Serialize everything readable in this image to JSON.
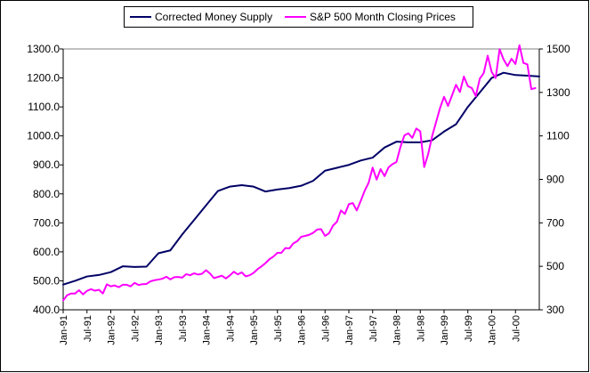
{
  "chart_data": {
    "type": "line",
    "title": "",
    "xlabel": "",
    "ylabel_left": "",
    "ylabel_right": "",
    "legend_position": "top-center",
    "grid": false,
    "x_ticks": [
      "Jan-91",
      "Jul-91",
      "Jan-92",
      "Jul-92",
      "Jan-93",
      "Jul-93",
      "Jan-94",
      "Jul-94",
      "Jan-95",
      "Jul-95",
      "Jan-96",
      "Jul-96",
      "Jan-97",
      "Jul-97",
      "Jan-98",
      "Jul-98",
      "Jan-99",
      "Jul-99",
      "Jan-00",
      "Jul-00"
    ],
    "x_range": [
      "Jan-91",
      "Jan-01"
    ],
    "y_left": {
      "min": 400,
      "max": 1300,
      "ticks": [
        "400.0",
        "500.0",
        "600.0",
        "700.0",
        "800.0",
        "900.0",
        "1000.0",
        "1100.0",
        "1200.0",
        "1300.0"
      ]
    },
    "y_right": {
      "min": 300,
      "max": 1500,
      "ticks": [
        "300",
        "500",
        "700",
        "900",
        "1100",
        "1300",
        "1500"
      ]
    },
    "series": [
      {
        "name": "Corrected Money Supply",
        "axis": "left",
        "color": "#000066",
        "points": [
          [
            "Jan-91",
            487
          ],
          [
            "Apr-91",
            500
          ],
          [
            "Jul-91",
            515
          ],
          [
            "Oct-91",
            520
          ],
          [
            "Jan-92",
            530
          ],
          [
            "Apr-92",
            550
          ],
          [
            "Jul-92",
            548
          ],
          [
            "Oct-92",
            549
          ],
          [
            "Jan-93",
            595
          ],
          [
            "Apr-93",
            605
          ],
          [
            "Jul-93",
            660
          ],
          [
            "Oct-93",
            710
          ],
          [
            "Jan-94",
            760
          ],
          [
            "Apr-94",
            810
          ],
          [
            "Jul-94",
            825
          ],
          [
            "Oct-94",
            830
          ],
          [
            "Jan-95",
            825
          ],
          [
            "Apr-95",
            808
          ],
          [
            "Jul-95",
            815
          ],
          [
            "Oct-95",
            820
          ],
          [
            "Jan-96",
            828
          ],
          [
            "Apr-96",
            845
          ],
          [
            "Jul-96",
            880
          ],
          [
            "Oct-96",
            890
          ],
          [
            "Jan-97",
            900
          ],
          [
            "Apr-97",
            915
          ],
          [
            "Jul-97",
            925
          ],
          [
            "Oct-97",
            960
          ],
          [
            "Jan-98",
            980
          ],
          [
            "Apr-98",
            978
          ],
          [
            "Jul-98",
            978
          ],
          [
            "Oct-98",
            985
          ],
          [
            "Jan-99",
            1015
          ],
          [
            "Apr-99",
            1040
          ],
          [
            "Jul-99",
            1100
          ],
          [
            "Oct-99",
            1150
          ],
          [
            "Jan-00",
            1200
          ],
          [
            "Apr-00",
            1218
          ],
          [
            "Jul-00",
            1210
          ],
          [
            "Oct-00",
            1208
          ],
          [
            "Jan-01",
            1205
          ]
        ]
      },
      {
        "name": "S&P 500 Month Closing Prices",
        "axis": "right",
        "color": "#ff00ff",
        "points": [
          [
            "Jan-91",
            343
          ],
          [
            "Feb-91",
            367
          ],
          [
            "Mar-91",
            375
          ],
          [
            "Apr-91",
            375
          ],
          [
            "May-91",
            390
          ],
          [
            "Jun-91",
            371
          ],
          [
            "Jul-91",
            387
          ],
          [
            "Aug-91",
            395
          ],
          [
            "Sep-91",
            388
          ],
          [
            "Oct-91",
            392
          ],
          [
            "Nov-91",
            375
          ],
          [
            "Dec-91",
            417
          ],
          [
            "Jan-92",
            408
          ],
          [
            "Feb-92",
            412
          ],
          [
            "Mar-92",
            404
          ],
          [
            "Apr-92",
            415
          ],
          [
            "May-92",
            415
          ],
          [
            "Jun-92",
            408
          ],
          [
            "Jul-92",
            424
          ],
          [
            "Aug-92",
            414
          ],
          [
            "Sep-92",
            418
          ],
          [
            "Oct-92",
            419
          ],
          [
            "Nov-92",
            431
          ],
          [
            "Dec-92",
            436
          ],
          [
            "Jan-93",
            439
          ],
          [
            "Feb-93",
            443
          ],
          [
            "Mar-93",
            452
          ],
          [
            "Apr-93",
            440
          ],
          [
            "May-93",
            450
          ],
          [
            "Jun-93",
            451
          ],
          [
            "Jul-93",
            448
          ],
          [
            "Aug-93",
            464
          ],
          [
            "Sep-93",
            459
          ],
          [
            "Oct-93",
            468
          ],
          [
            "Nov-93",
            462
          ],
          [
            "Dec-93",
            466
          ],
          [
            "Jan-94",
            482
          ],
          [
            "Feb-94",
            467
          ],
          [
            "Mar-94",
            446
          ],
          [
            "Apr-94",
            451
          ],
          [
            "May-94",
            457
          ],
          [
            "Jun-94",
            444
          ],
          [
            "Jul-94",
            458
          ],
          [
            "Aug-94",
            475
          ],
          [
            "Sep-94",
            463
          ],
          [
            "Oct-94",
            472
          ],
          [
            "Nov-94",
            454
          ],
          [
            "Dec-94",
            459
          ],
          [
            "Jan-95",
            470
          ],
          [
            "Feb-95",
            487
          ],
          [
            "Mar-95",
            500
          ],
          [
            "Apr-95",
            515
          ],
          [
            "May-95",
            533
          ],
          [
            "Jun-95",
            545
          ],
          [
            "Jul-95",
            562
          ],
          [
            "Aug-95",
            562
          ],
          [
            "Sep-95",
            584
          ],
          [
            "Oct-95",
            582
          ],
          [
            "Nov-95",
            605
          ],
          [
            "Dec-95",
            616
          ],
          [
            "Jan-96",
            636
          ],
          [
            "Feb-96",
            640
          ],
          [
            "Mar-96",
            645
          ],
          [
            "Apr-96",
            654
          ],
          [
            "May-96",
            669
          ],
          [
            "Jun-96",
            671
          ],
          [
            "Jul-96",
            640
          ],
          [
            "Aug-96",
            652
          ],
          [
            "Sep-96",
            687
          ],
          [
            "Oct-96",
            705
          ],
          [
            "Nov-96",
            757
          ],
          [
            "Dec-96",
            741
          ],
          [
            "Jan-97",
            786
          ],
          [
            "Feb-97",
            791
          ],
          [
            "Mar-97",
            757
          ],
          [
            "Apr-97",
            801
          ],
          [
            "May-97",
            848
          ],
          [
            "Jun-97",
            885
          ],
          [
            "Jul-97",
            954
          ],
          [
            "Aug-97",
            899
          ],
          [
            "Sep-97",
            947
          ],
          [
            "Oct-97",
            915
          ],
          [
            "Nov-97",
            955
          ],
          [
            "Dec-97",
            970
          ],
          [
            "Jan-98",
            980
          ],
          [
            "Feb-98",
            1049
          ],
          [
            "Mar-98",
            1102
          ],
          [
            "Apr-98",
            1112
          ],
          [
            "May-98",
            1091
          ],
          [
            "Jun-98",
            1134
          ],
          [
            "Jul-98",
            1121
          ],
          [
            "Aug-98",
            957
          ],
          [
            "Sep-98",
            1017
          ],
          [
            "Oct-98",
            1099
          ],
          [
            "Nov-98",
            1164
          ],
          [
            "Dec-98",
            1229
          ],
          [
            "Jan-99",
            1280
          ],
          [
            "Feb-99",
            1238
          ],
          [
            "Mar-99",
            1286
          ],
          [
            "Apr-99",
            1335
          ],
          [
            "May-99",
            1302
          ],
          [
            "Jun-99",
            1373
          ],
          [
            "Jul-99",
            1329
          ],
          [
            "Aug-99",
            1320
          ],
          [
            "Sep-99",
            1283
          ],
          [
            "Oct-99",
            1363
          ],
          [
            "Nov-99",
            1389
          ],
          [
            "Dec-99",
            1469
          ],
          [
            "Jan-00",
            1394
          ],
          [
            "Feb-00",
            1366
          ],
          [
            "Mar-00",
            1499
          ],
          [
            "Apr-00",
            1452
          ],
          [
            "May-00",
            1421
          ],
          [
            "Jun-00",
            1455
          ],
          [
            "Jul-00",
            1431
          ],
          [
            "Aug-00",
            1517
          ],
          [
            "Sep-00",
            1436
          ],
          [
            "Oct-00",
            1429
          ],
          [
            "Nov-00",
            1315
          ],
          [
            "Dec-00",
            1320
          ]
        ]
      }
    ]
  }
}
